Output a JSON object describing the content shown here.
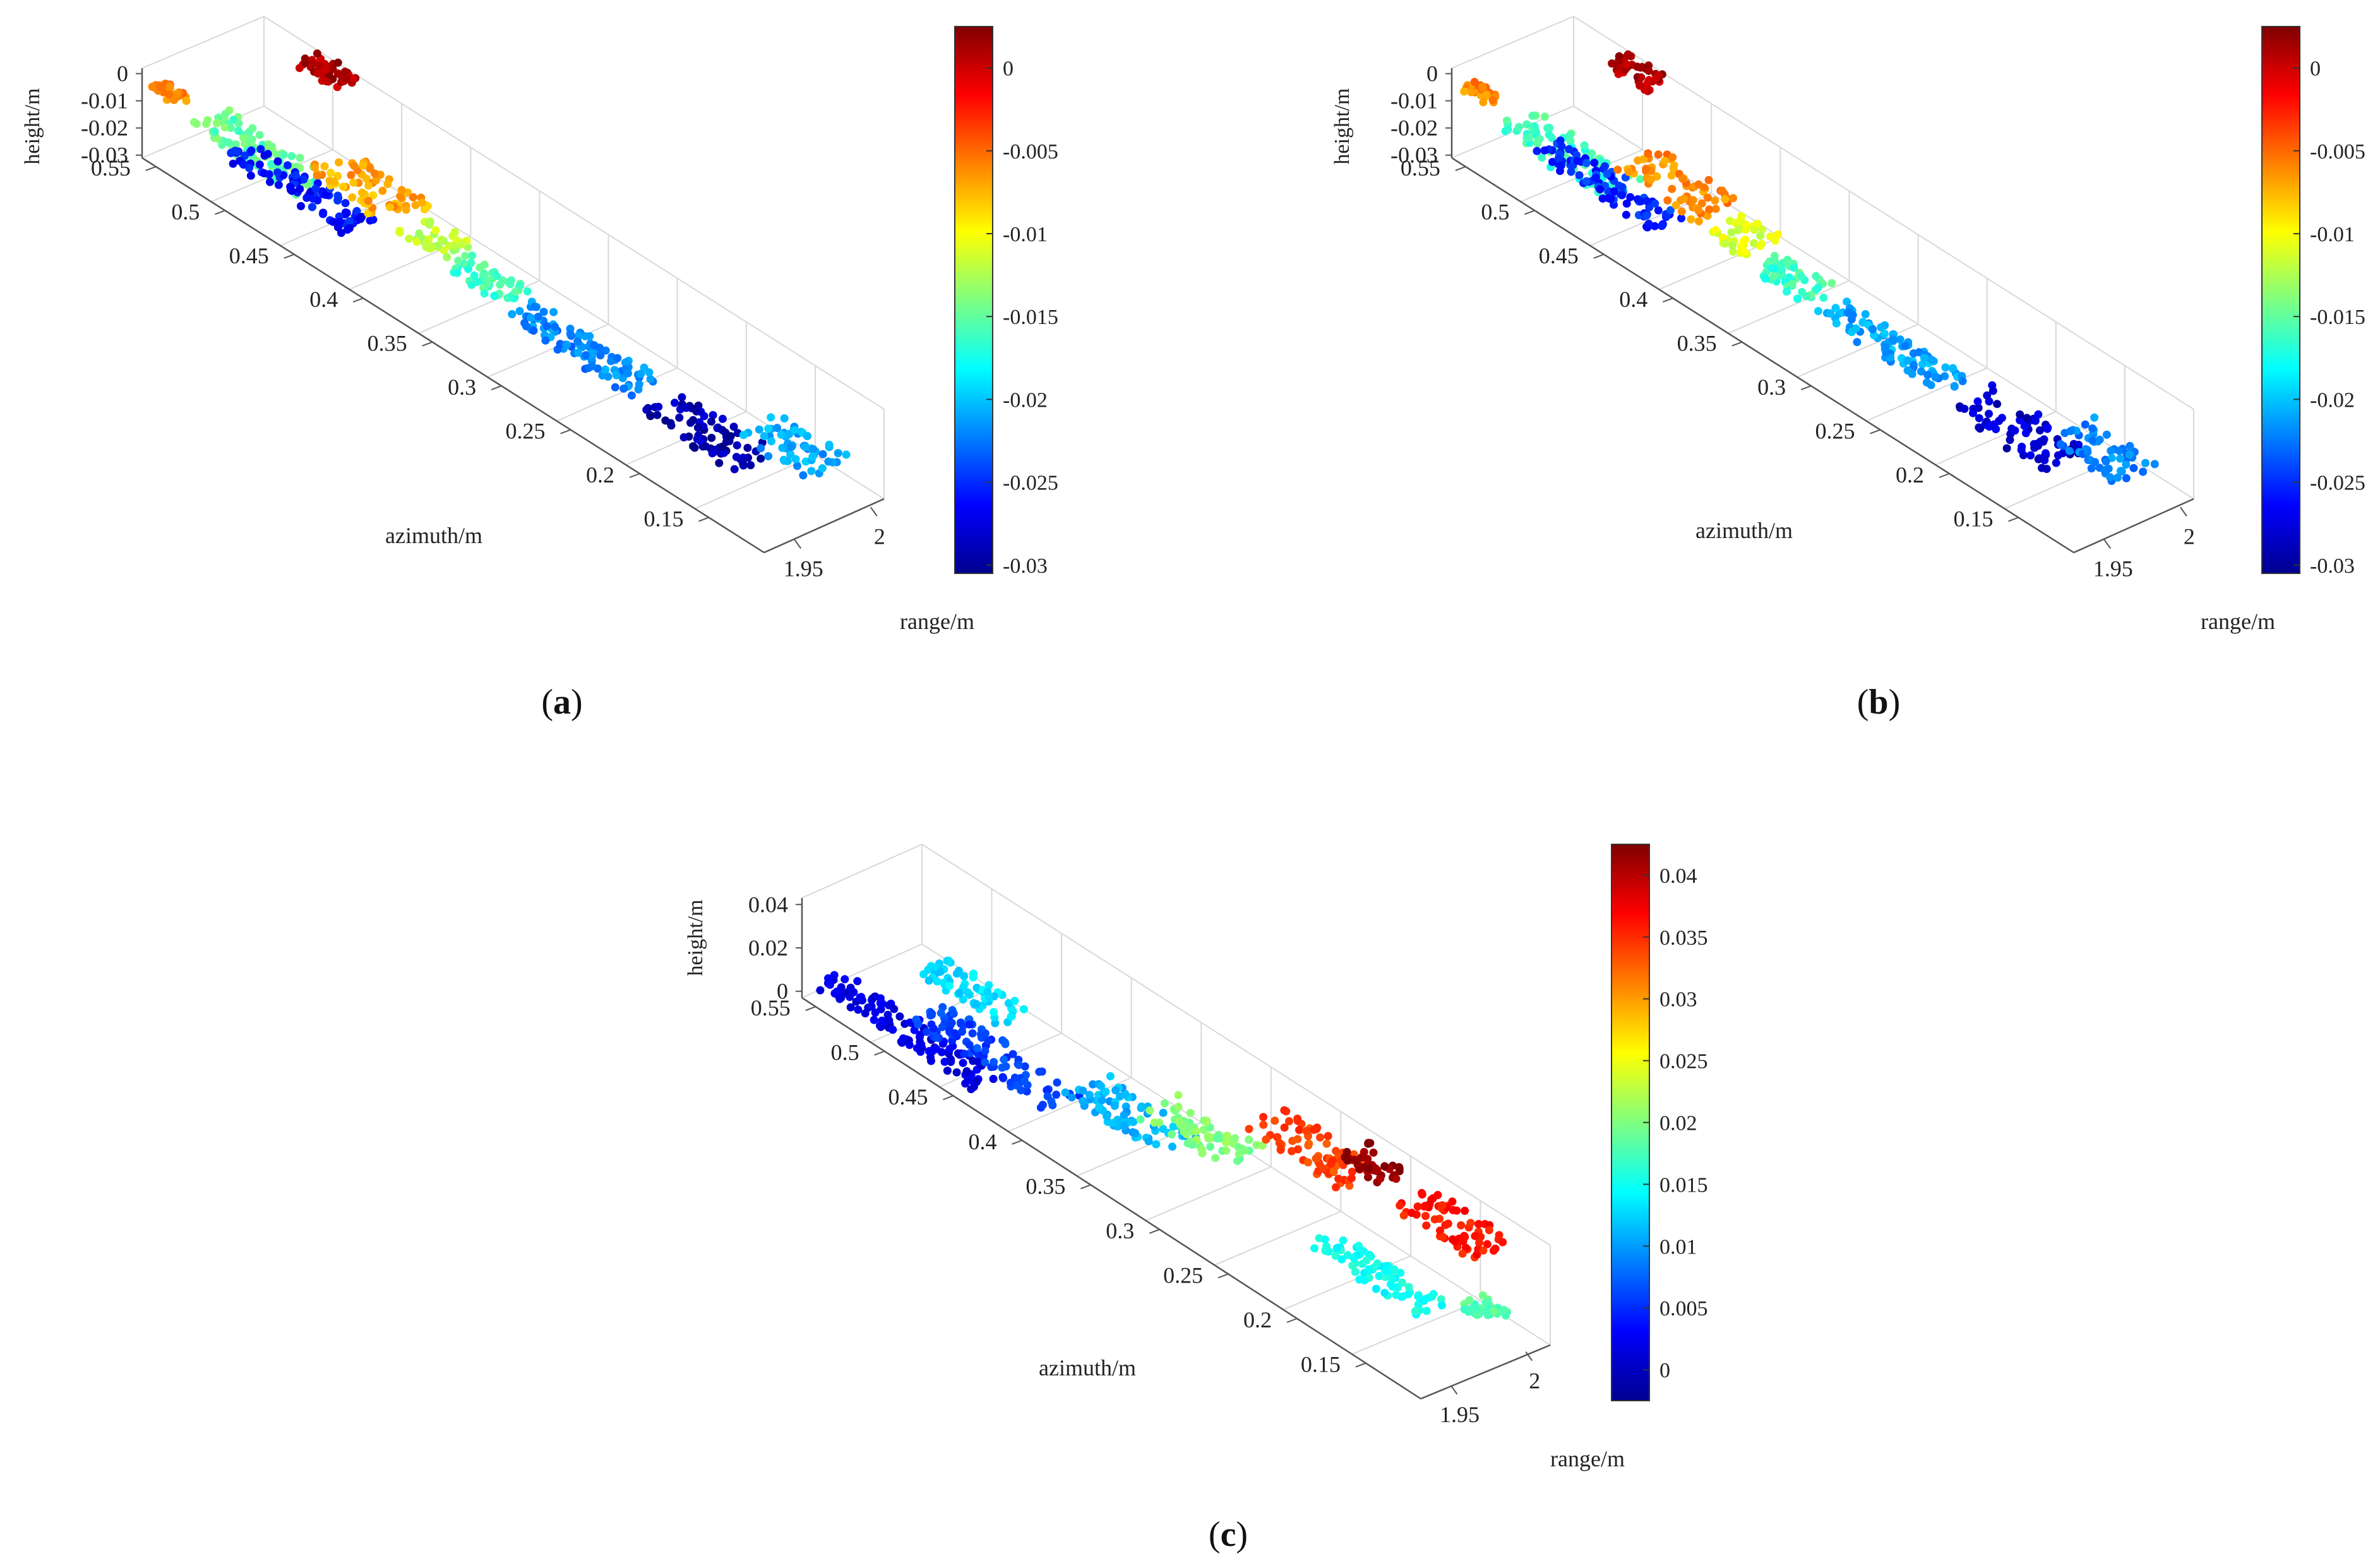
{
  "figure": {
    "panels": [
      "(a)",
      "(b)",
      "(c)"
    ]
  },
  "chart_data": [
    {
      "id": "a",
      "type": "scatter",
      "panel_label": "a",
      "xlabel": "range/m",
      "ylabel": "azimuth/m",
      "zlabel": "height/m",
      "xticks": [
        "1.95",
        "2"
      ],
      "yticks": [
        "0.55",
        "0.5",
        "0.45",
        "0.4",
        "0.35",
        "0.3",
        "0.25",
        "0.2",
        "0.15"
      ],
      "zticks": [
        "0",
        "-0.01",
        "-0.02",
        "-0.03"
      ],
      "zlim": [
        -0.031,
        0.002
      ],
      "colorbar_ticks": [
        "0",
        "-0.005",
        "-0.01",
        "-0.015",
        "-0.02",
        "-0.025",
        "-0.03"
      ],
      "colorbar_values": [
        0,
        -0.005,
        -0.01,
        -0.015,
        -0.02,
        -0.025,
        -0.03
      ],
      "colorbar_range": [
        -0.0305,
        0.0025
      ],
      "colormap": "jet",
      "segments": [
        {
          "az": [
            0.56,
            0.54
          ],
          "r": [
            1.935,
            1.945
          ],
          "h": -0.006
        },
        {
          "az": [
            0.54,
            0.46
          ],
          "r": [
            1.94,
            1.965
          ],
          "h": -0.015
        },
        {
          "az": [
            0.53,
            0.44
          ],
          "r": [
            1.955,
            1.975
          ],
          "h": -0.026
        },
        {
          "az": [
            0.46,
            0.4
          ],
          "r": [
            1.945,
            1.975
          ],
          "h": -0.007
        },
        {
          "az": [
            0.4,
            0.37
          ],
          "r": [
            1.95,
            1.975
          ],
          "h": -0.012
        },
        {
          "az": [
            0.37,
            0.33
          ],
          "r": [
            1.955,
            1.975
          ],
          "h": -0.016
        },
        {
          "az": [
            0.33,
            0.24
          ],
          "r": [
            1.96,
            1.98
          ],
          "h": -0.022
        },
        {
          "az": [
            0.24,
            0.17
          ],
          "r": [
            1.965,
            1.995
          ],
          "h": -0.029
        },
        {
          "az": [
            0.18,
            0.13
          ],
          "r": [
            1.975,
            2.005
          ],
          "h": -0.021
        },
        {
          "az": [
            0.52,
            0.49
          ],
          "r": [
            1.995,
            2.01
          ],
          "h": 0.001
        }
      ]
    },
    {
      "id": "b",
      "type": "scatter",
      "panel_label": "b",
      "xlabel": "range/m",
      "ylabel": "azimuth/m",
      "zlabel": "height/m",
      "xticks": [
        "1.95",
        "2"
      ],
      "yticks": [
        "0.55",
        "0.5",
        "0.45",
        "0.4",
        "0.35",
        "0.3",
        "0.25",
        "0.2",
        "0.15"
      ],
      "zticks": [
        "0",
        "-0.01",
        "-0.02",
        "-0.03"
      ],
      "zlim": [
        -0.031,
        0.002
      ],
      "colorbar_ticks": [
        "0",
        "-0.005",
        "-0.01",
        "-0.015",
        "-0.02",
        "-0.025",
        "-0.03"
      ],
      "colorbar_values": [
        0,
        -0.005,
        -0.01,
        -0.015,
        -0.02,
        -0.025,
        -0.03
      ],
      "colorbar_range": [
        -0.0305,
        0.0025
      ],
      "colormap": "jet",
      "segments": [
        {
          "az": [
            0.56,
            0.54
          ],
          "r": [
            1.935,
            1.945
          ],
          "h": -0.006
        },
        {
          "az": [
            0.54,
            0.46
          ],
          "r": [
            1.94,
            1.965
          ],
          "h": -0.016
        },
        {
          "az": [
            0.53,
            0.44
          ],
          "r": [
            1.955,
            1.975
          ],
          "h": -0.025
        },
        {
          "az": [
            0.46,
            0.4
          ],
          "r": [
            1.945,
            1.975
          ],
          "h": -0.006
        },
        {
          "az": [
            0.4,
            0.37
          ],
          "r": [
            1.95,
            1.975
          ],
          "h": -0.011
        },
        {
          "az": [
            0.37,
            0.33
          ],
          "r": [
            1.955,
            1.975
          ],
          "h": -0.016
        },
        {
          "az": [
            0.33,
            0.24
          ],
          "r": [
            1.96,
            1.98
          ],
          "h": -0.021
        },
        {
          "az": [
            0.24,
            0.17
          ],
          "r": [
            1.965,
            1.995
          ],
          "h": -0.028
        },
        {
          "az": [
            0.18,
            0.13
          ],
          "r": [
            1.975,
            2.005
          ],
          "h": -0.022
        },
        {
          "az": [
            0.52,
            0.49
          ],
          "r": [
            1.995,
            2.01
          ],
          "h": 0.001
        }
      ]
    },
    {
      "id": "c",
      "type": "scatter",
      "panel_label": "c",
      "xlabel": "range/m",
      "ylabel": "azimuth/m",
      "zlabel": "height/m",
      "xticks": [
        "1.95",
        "2"
      ],
      "yticks": [
        "0.55",
        "0.5",
        "0.45",
        "0.4",
        "0.35",
        "0.3",
        "0.25",
        "0.2",
        "0.15"
      ],
      "zticks": [
        "0.04",
        "0.02",
        "0"
      ],
      "zlim": [
        -0.003,
        0.043
      ],
      "colorbar_ticks": [
        "0.04",
        "0.035",
        "0.03",
        "0.025",
        "0.02",
        "0.015",
        "0.01",
        "0.005",
        "0"
      ],
      "colorbar_values": [
        0.04,
        0.035,
        0.03,
        0.025,
        0.02,
        0.015,
        0.01,
        0.005,
        0
      ],
      "colorbar_range": [
        -0.0025,
        0.0425
      ],
      "colormap": "jet",
      "segments": [
        {
          "az": [
            0.56,
            0.44
          ],
          "r": [
            1.935,
            1.955
          ],
          "h": 0.002
        },
        {
          "az": [
            0.5,
            0.4
          ],
          "r": [
            1.945,
            1.97
          ],
          "h": 0.006
        },
        {
          "az": [
            0.52,
            0.46
          ],
          "r": [
            1.97,
            1.99
          ],
          "h": 0.013
        },
        {
          "az": [
            0.4,
            0.33
          ],
          "r": [
            1.955,
            1.985
          ],
          "h": 0.011
        },
        {
          "az": [
            0.35,
            0.29
          ],
          "r": [
            1.96,
            1.99
          ],
          "h": 0.02
        },
        {
          "az": [
            0.29,
            0.22
          ],
          "r": [
            1.975,
            2.005
          ],
          "h": 0.034
        },
        {
          "az": [
            0.23,
            0.2
          ],
          "r": [
            1.985,
            2.005
          ],
          "h": 0.042
        },
        {
          "az": [
            0.22,
            0.14
          ],
          "r": [
            1.955,
            1.975
          ],
          "h": 0.015
        },
        {
          "az": [
            0.19,
            0.13
          ],
          "r": [
            1.985,
            2.01
          ],
          "h": 0.036
        },
        {
          "az": [
            0.13,
            0.11
          ],
          "r": [
            1.975,
            1.99
          ],
          "h": 0.018
        }
      ]
    }
  ]
}
